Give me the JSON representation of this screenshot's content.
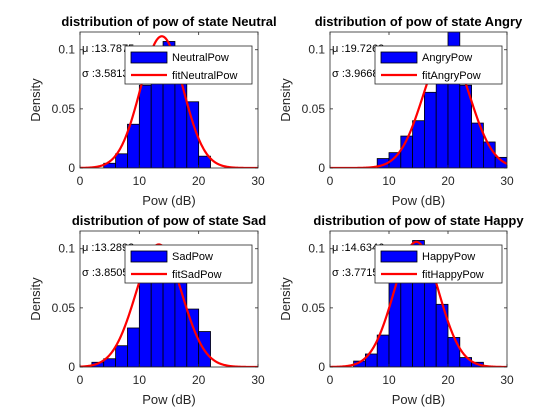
{
  "figure": {
    "background": "#ffffff"
  },
  "colors": {
    "hist": "#0000ff",
    "hist_edge": "#000000",
    "fit": "#ff0000",
    "axis": "#262626"
  },
  "chart_data": [
    {
      "type": "bar",
      "title": "distribution of pow of state Neutral",
      "xlabel": "Pow (dB)",
      "ylabel": "Density",
      "xlim": [
        0,
        30
      ],
      "ylim": [
        0,
        0.115
      ],
      "xticks": [
        "0",
        "10",
        "20",
        "30"
      ],
      "yticks": [
        "0",
        "0.05",
        "0.1"
      ],
      "stats": {
        "mu": "μ :13.7875",
        "sigma": "σ :3.5813"
      },
      "legend": {
        "position": "top-right",
        "entries": [
          "NeutralPow",
          "fitNeutralPow"
        ]
      },
      "bin_edges": [
        4,
        6,
        8,
        10,
        12,
        14,
        16,
        18,
        20,
        22
      ],
      "values": [
        0.004,
        0.012,
        0.037,
        0.07,
        0.094,
        0.107,
        0.096,
        0.056,
        0.01
      ],
      "fit": {
        "mu": 13.7875,
        "sigma": 3.5813
      }
    },
    {
      "type": "bar",
      "title": "distribution of pow of state Angry",
      "xlabel": "Pow (dB)",
      "ylabel": "Density",
      "xlim": [
        0,
        30
      ],
      "ylim": [
        0,
        0.115
      ],
      "xticks": [
        "0",
        "10",
        "20",
        "30"
      ],
      "yticks": [
        "0",
        "0.05",
        "0.1"
      ],
      "stats": {
        "mu": "μ :19.7263",
        "sigma": "σ :3.9668"
      },
      "legend": {
        "position": "top-right",
        "entries": [
          "AngryPow",
          "fitAngryPow"
        ]
      },
      "bin_edges": [
        8,
        10,
        12,
        14,
        16,
        18,
        20,
        22,
        24,
        26,
        28,
        30
      ],
      "values": [
        0.008,
        0.013,
        0.027,
        0.04,
        0.064,
        0.097,
        0.115,
        0.07,
        0.038,
        0.022,
        0.009
      ],
      "fit": {
        "mu": 19.7263,
        "sigma": 3.9668
      }
    },
    {
      "type": "bar",
      "title": "distribution of pow of state Sad",
      "xlabel": "Pow (dB)",
      "ylabel": "Density",
      "xlim": [
        0,
        30
      ],
      "ylim": [
        0,
        0.115
      ],
      "xticks": [
        "0",
        "10",
        "20",
        "30"
      ],
      "yticks": [
        "0",
        "0.05",
        "0.1"
      ],
      "stats": {
        "mu": "μ :13.2893",
        "sigma": "σ :3.8505"
      },
      "legend": {
        "position": "top-right",
        "entries": [
          "SadPow",
          "fitSadPow"
        ]
      },
      "bin_edges": [
        2,
        4,
        6,
        8,
        10,
        12,
        14,
        16,
        18,
        20,
        22
      ],
      "values": [
        0.004,
        0.007,
        0.018,
        0.033,
        0.073,
        0.091,
        0.096,
        0.078,
        0.049,
        0.03
      ],
      "fit": {
        "mu": 13.2893,
        "sigma": 3.8505
      }
    },
    {
      "type": "bar",
      "title": "distribution of pow of state Happy",
      "xlabel": "Pow (dB)",
      "ylabel": "Density",
      "xlim": [
        0,
        30
      ],
      "ylim": [
        0,
        0.115
      ],
      "xticks": [
        "0",
        "10",
        "20",
        "30"
      ],
      "yticks": [
        "0",
        "0.05",
        "0.1"
      ],
      "stats": {
        "mu": "μ :14.6346",
        "sigma": "σ :3.7715"
      },
      "legend": {
        "position": "top-right",
        "entries": [
          "HappyPow",
          "fitHappyPow"
        ]
      },
      "bin_edges": [
        4,
        6,
        8,
        10,
        12,
        14,
        16,
        18,
        20,
        22,
        24,
        26
      ],
      "values": [
        0.005,
        0.011,
        0.027,
        0.078,
        0.08,
        0.107,
        0.084,
        0.053,
        0.025,
        0.008,
        0.004
      ],
      "fit": {
        "mu": 14.6346,
        "sigma": 3.7715
      }
    }
  ]
}
